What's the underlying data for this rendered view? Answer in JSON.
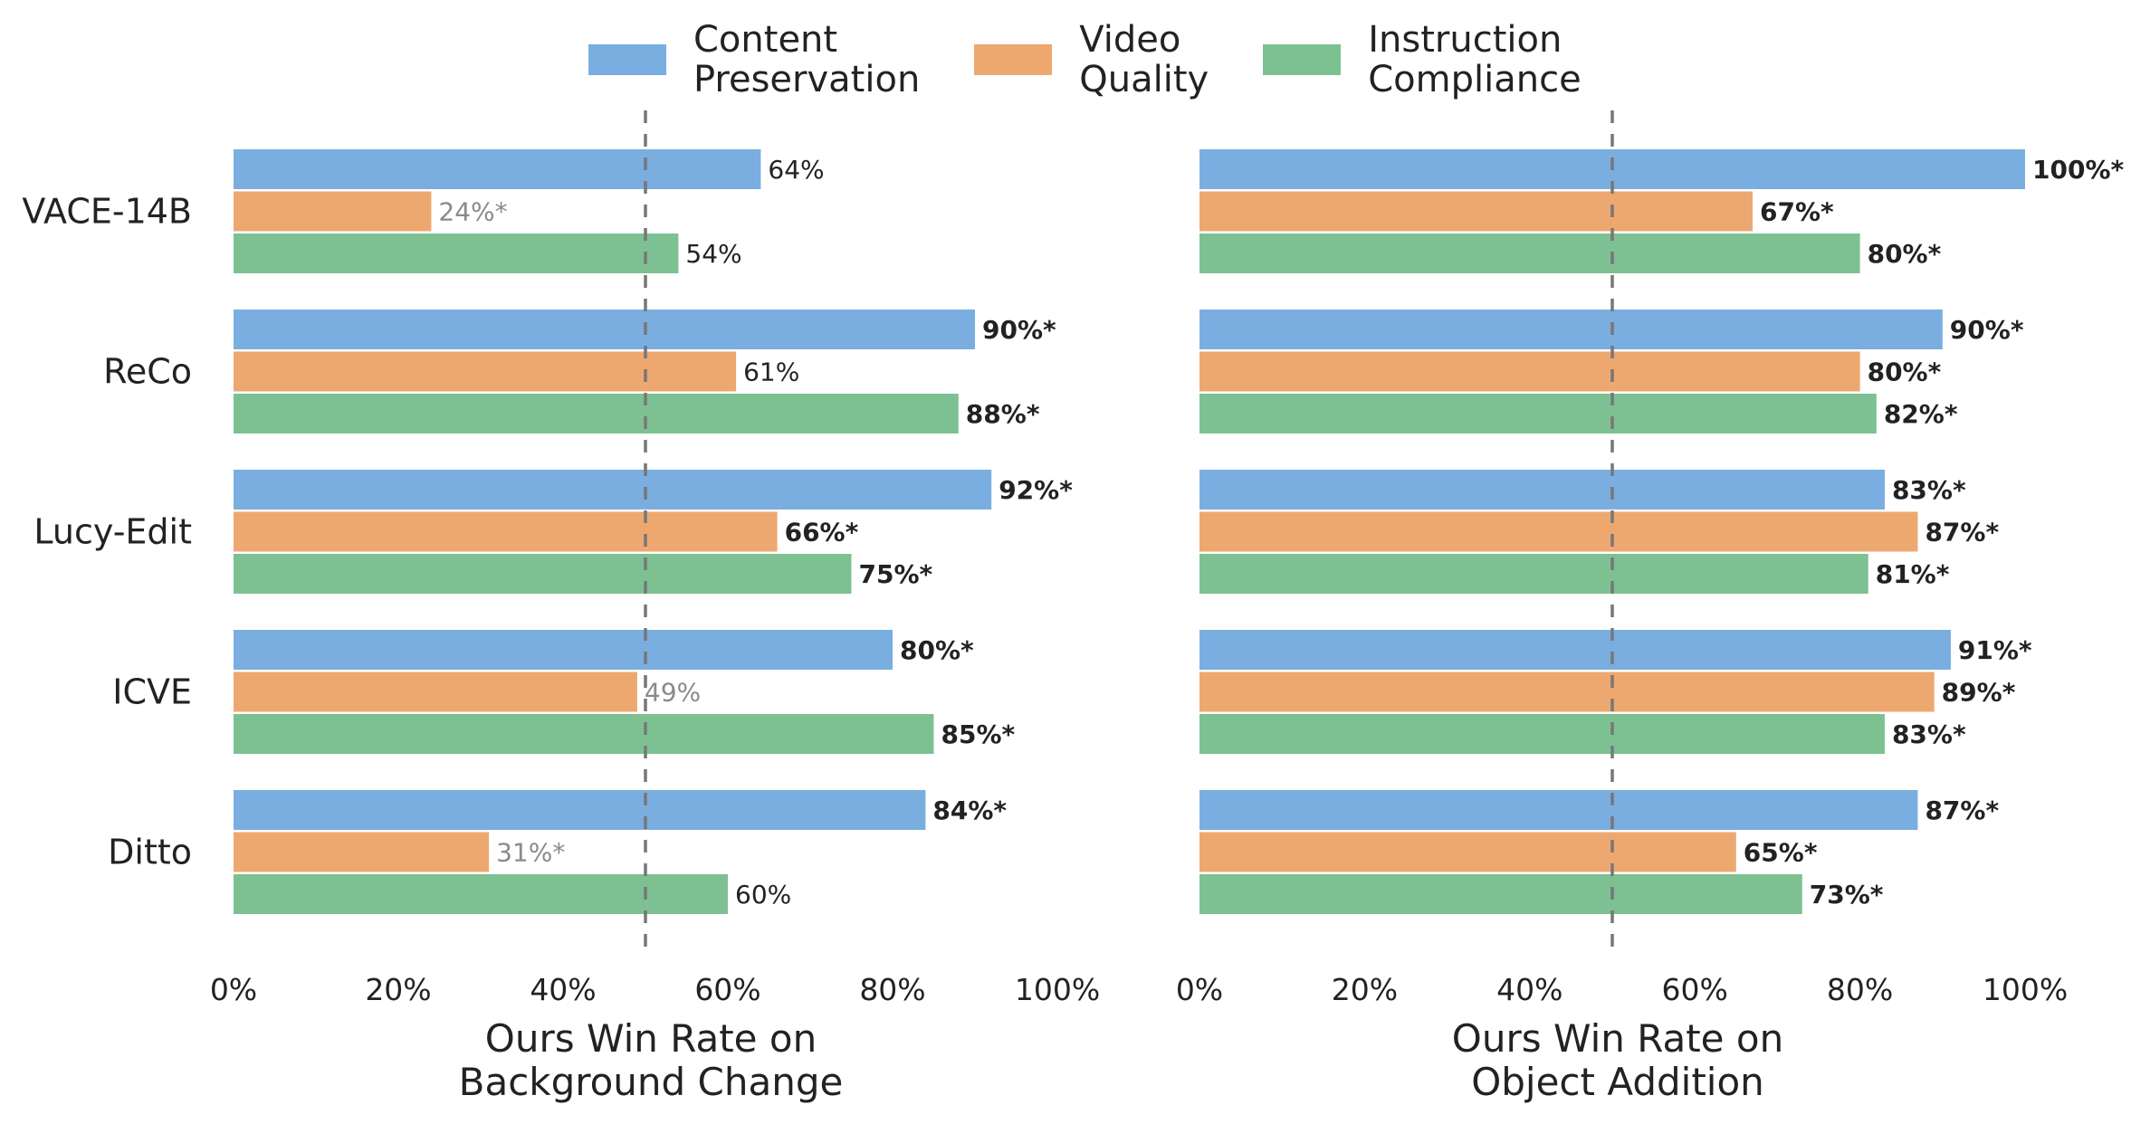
{
  "legend": [
    {
      "label": "Content\nPreservation",
      "color": "#7aaee0"
    },
    {
      "label": "Video\nQuality",
      "color": "#eda870"
    },
    {
      "label": "Instruction\nCompliance",
      "color": "#7dc193"
    }
  ],
  "chart_data": [
    {
      "type": "bar",
      "orientation": "horizontal",
      "categories": [
        "VACE-14B",
        "ReCo",
        "Lucy-Edit",
        "ICVE",
        "Ditto"
      ],
      "series": [
        {
          "name": "Content Preservation",
          "values": [
            64,
            90,
            92,
            80,
            84
          ],
          "labels": [
            "64%",
            "90%*",
            "92%*",
            "80%*",
            "84%*"
          ]
        },
        {
          "name": "Video Quality",
          "values": [
            24,
            61,
            66,
            49,
            31
          ],
          "labels": [
            "24%*",
            "61%",
            "66%*",
            "49%",
            "31%*"
          ]
        },
        {
          "name": "Instruction Compliance",
          "values": [
            54,
            88,
            75,
            85,
            60
          ],
          "labels": [
            "54%",
            "88%*",
            "75%*",
            "85%*",
            "60%"
          ]
        }
      ],
      "xlabel": "Ours Win Rate on\nBackground Change",
      "xlim": [
        0,
        100
      ],
      "xticks": [
        "0%",
        "20%",
        "40%",
        "60%",
        "80%",
        "100%"
      ],
      "reference_line": 50
    },
    {
      "type": "bar",
      "orientation": "horizontal",
      "categories": [
        "VACE-14B",
        "ReCo",
        "Lucy-Edit",
        "ICVE",
        "Ditto"
      ],
      "series": [
        {
          "name": "Content Preservation",
          "values": [
            100,
            90,
            83,
            91,
            87
          ],
          "labels": [
            "100%*",
            "90%*",
            "83%*",
            "91%*",
            "87%*"
          ]
        },
        {
          "name": "Video Quality",
          "values": [
            67,
            80,
            87,
            89,
            65
          ],
          "labels": [
            "67%*",
            "80%*",
            "87%*",
            "89%*",
            "65%*"
          ]
        },
        {
          "name": "Instruction Compliance",
          "values": [
            80,
            82,
            81,
            83,
            73
          ],
          "labels": [
            "80%*",
            "82%*",
            "81%*",
            "83%*",
            "73%*"
          ]
        }
      ],
      "xlabel": "Ours Win Rate on\nObject Addition",
      "xlim": [
        0,
        100
      ],
      "xticks": [
        "0%",
        "20%",
        "40%",
        "60%",
        "80%",
        "100%"
      ],
      "reference_line": 50
    }
  ]
}
